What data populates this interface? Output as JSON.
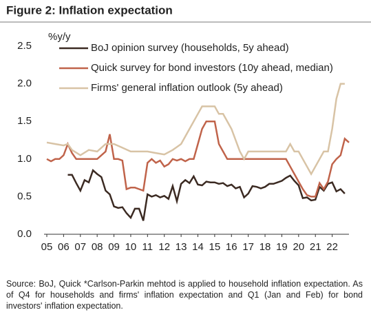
{
  "chart_data": {
    "type": "line",
    "title": "Figure 2: Inflation expectation",
    "y_label": "%y/y",
    "source": "Source: BoJ, Quick *Carlson-Parkin mehtod is applied to household inflation expectation. As of Q4 for households and firms' inflation expectation and Q1 (Jan and Feb) for bond investors' inflation expectation.",
    "xlim": [
      2005,
      2023
    ],
    "xticks": [
      {
        "value": 2005,
        "label": "05"
      },
      {
        "value": 2006,
        "label": "06"
      },
      {
        "value": 2007,
        "label": "07"
      },
      {
        "value": 2008,
        "label": "08"
      },
      {
        "value": 2009,
        "label": "09"
      },
      {
        "value": 2010,
        "label": "10"
      },
      {
        "value": 2011,
        "label": "11"
      },
      {
        "value": 2012,
        "label": "12"
      },
      {
        "value": 2013,
        "label": "13"
      },
      {
        "value": 2014,
        "label": "14"
      },
      {
        "value": 2015,
        "label": "15"
      },
      {
        "value": 2016,
        "label": "16"
      },
      {
        "value": 2017,
        "label": "17"
      },
      {
        "value": 2018,
        "label": "18"
      },
      {
        "value": 2019,
        "label": "19"
      },
      {
        "value": 2020,
        "label": "20"
      },
      {
        "value": 2021,
        "label": "21"
      },
      {
        "value": 2022,
        "label": "22"
      }
    ],
    "ylim": [
      0,
      2.5
    ],
    "yticks": [
      {
        "value": 0,
        "label": "0.0"
      },
      {
        "value": 0.5,
        "label": "0.5"
      },
      {
        "value": 1,
        "label": "1.0"
      },
      {
        "value": 1.5,
        "label": "1.5"
      },
      {
        "value": 2,
        "label": "2.0"
      },
      {
        "value": 2.5,
        "label": "2.5"
      }
    ],
    "series": [
      {
        "name": "BoJ opinion survey (households, 5y ahead)",
        "color": "#3b2a22",
        "x": [
          2006.25,
          2006.5,
          2006.75,
          2007,
          2007.25,
          2007.5,
          2007.75,
          2008,
          2008.25,
          2008.5,
          2008.75,
          2009,
          2009.25,
          2009.5,
          2009.75,
          2010,
          2010.25,
          2010.5,
          2010.75,
          2011,
          2011.25,
          2011.5,
          2011.75,
          2012,
          2012.25,
          2012.5,
          2012.75,
          2013,
          2013.25,
          2013.5,
          2013.75,
          2014,
          2014.25,
          2014.5,
          2014.75,
          2015,
          2015.25,
          2015.5,
          2015.75,
          2016,
          2016.25,
          2016.5,
          2016.75,
          2017,
          2017.25,
          2017.5,
          2017.75,
          2018,
          2018.25,
          2018.5,
          2018.75,
          2019,
          2019.25,
          2019.5,
          2019.75,
          2020,
          2020.25,
          2020.5,
          2020.75,
          2021,
          2021.25,
          2021.5,
          2021.75,
          2022,
          2022.25,
          2022.5,
          2022.75
        ],
        "values": [
          0.79,
          0.79,
          0.68,
          0.58,
          0.72,
          0.69,
          0.85,
          0.8,
          0.76,
          0.58,
          0.53,
          0.37,
          0.35,
          0.36,
          0.28,
          0.22,
          0.34,
          0.34,
          0.18,
          0.53,
          0.5,
          0.52,
          0.49,
          0.51,
          0.47,
          0.64,
          0.44,
          0.67,
          0.72,
          0.68,
          0.77,
          0.66,
          0.65,
          0.7,
          0.69,
          0.69,
          0.67,
          0.68,
          0.64,
          0.66,
          0.61,
          0.63,
          0.49,
          0.54,
          0.64,
          0.63,
          0.61,
          0.63,
          0.67,
          0.67,
          0.69,
          0.71,
          0.75,
          0.78,
          0.71,
          0.65,
          0.48,
          0.49,
          0.45,
          0.46,
          0.63,
          0.58,
          0.67,
          0.69,
          0.57,
          0.6,
          0.54
        ]
      },
      {
        "name": "Quick survey for bond investors (10y ahead, median)",
        "color": "#c0634a",
        "x": [
          2005,
          2005.25,
          2005.5,
          2005.75,
          2006,
          2006.25,
          2006.5,
          2006.75,
          2007,
          2007.5,
          2008,
          2008.5,
          2008.75,
          2009,
          2009.25,
          2009.5,
          2009.75,
          2010,
          2010.25,
          2010.5,
          2010.75,
          2011,
          2011.25,
          2011.5,
          2011.75,
          2012,
          2012.25,
          2012.5,
          2012.75,
          2013,
          2013.25,
          2013.5,
          2013.75,
          2014,
          2014.25,
          2014.5,
          2014.75,
          2015,
          2015.25,
          2015.5,
          2015.75,
          2016,
          2017,
          2018,
          2019,
          2019.25,
          2019.5,
          2019.75,
          2020,
          2020.25,
          2020.5,
          2020.75,
          2021,
          2021.25,
          2021.5,
          2021.75,
          2022,
          2022.25,
          2022.5,
          2022.75,
          2023
        ],
        "values": [
          1.0,
          0.97,
          1.0,
          1.0,
          1.05,
          1.2,
          1.08,
          1.0,
          1.0,
          1.0,
          1.0,
          1.1,
          1.33,
          1.0,
          1.0,
          0.98,
          0.6,
          0.62,
          0.62,
          0.6,
          0.58,
          0.95,
          1.0,
          0.95,
          0.98,
          0.9,
          0.93,
          1.0,
          0.98,
          1.0,
          0.97,
          1.0,
          1.0,
          1.2,
          1.4,
          1.5,
          1.5,
          1.5,
          1.2,
          1.1,
          1.0,
          1.0,
          1.0,
          1.0,
          1.0,
          1.0,
          0.9,
          0.8,
          0.7,
          0.6,
          0.52,
          0.5,
          0.5,
          0.68,
          0.6,
          0.7,
          0.93,
          1.0,
          1.05,
          1.27,
          1.22
        ]
      },
      {
        "name": "Firms' general inflation outlook (5y ahead)",
        "color": "#d8c3a5",
        "x": [
          2005,
          2005.5,
          2006,
          2006.25,
          2006.5,
          2007,
          2007.5,
          2008,
          2008.5,
          2009,
          2009.5,
          2010,
          2011,
          2011.5,
          2012,
          2012.5,
          2013,
          2013.5,
          2014,
          2014.25,
          2015,
          2015.25,
          2015.5,
          2016,
          2016.5,
          2016.75,
          2017,
          2018,
          2019,
          2019.25,
          2019.5,
          2019.75,
          2020,
          2020.25,
          2020.5,
          2020.75,
          2021,
          2021.25,
          2021.5,
          2021.75,
          2022,
          2022.25,
          2022.5,
          2022.75
        ],
        "values": [
          1.22,
          1.2,
          1.18,
          1.2,
          1.12,
          1.05,
          1.12,
          1.1,
          1.2,
          1.2,
          1.15,
          1.1,
          1.1,
          1.08,
          1.06,
          1.12,
          1.2,
          1.4,
          1.6,
          1.7,
          1.7,
          1.6,
          1.6,
          1.4,
          1.1,
          1.0,
          1.1,
          1.1,
          1.1,
          1.1,
          1.2,
          1.1,
          1.1,
          1.0,
          0.9,
          0.8,
          0.9,
          1.0,
          1.1,
          1.1,
          1.4,
          1.8,
          2.0,
          2.0
        ]
      }
    ]
  }
}
